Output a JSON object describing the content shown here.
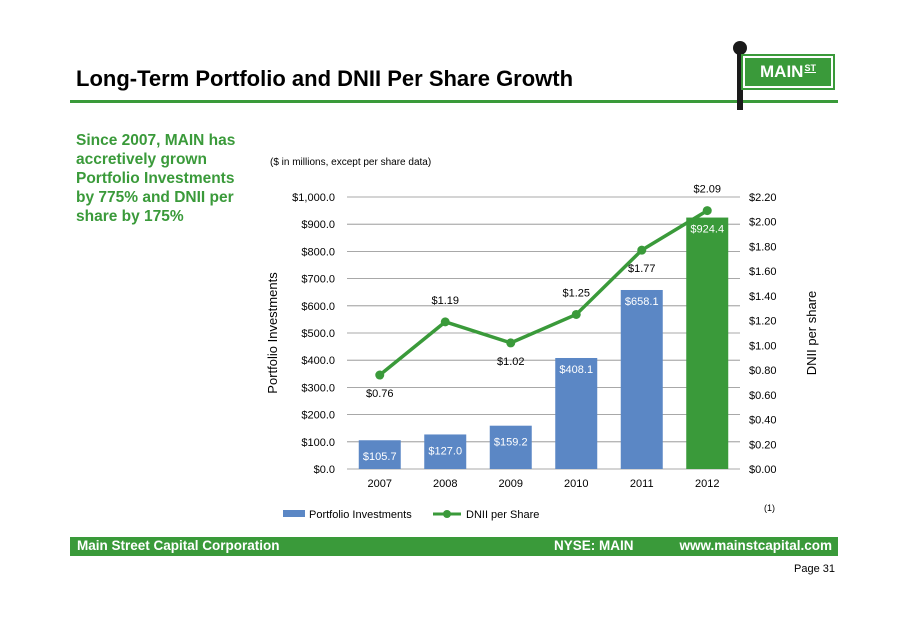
{
  "header": {
    "title": "Long-Term Portfolio and DNII Per Share Growth"
  },
  "logo": {
    "text": "MAIN",
    "superscript": "ST"
  },
  "sidebar": {
    "text": "Since 2007, MAIN has accretively grown Portfolio Investments by 775% and DNII per share by 175%"
  },
  "chart_data": {
    "type": "bar",
    "subtitle": "($ in millions, except per share data)",
    "categories": [
      "2007",
      "2008",
      "2009",
      "2010",
      "2011",
      "2012"
    ],
    "series": [
      {
        "name": "Portfolio Investments",
        "kind": "bar",
        "axis": "left",
        "values": [
          105.7,
          127.0,
          159.2,
          408.1,
          658.1,
          924.4
        ],
        "labels": [
          "$105.7",
          "$127.0",
          "$159.2",
          "$408.1",
          "$658.1",
          "$924.4"
        ],
        "colors": [
          "#5b87c5",
          "#5b87c5",
          "#5b87c5",
          "#5b87c5",
          "#5b87c5",
          "#3a9a3a"
        ]
      },
      {
        "name": "DNII per Share",
        "kind": "line",
        "axis": "right",
        "values": [
          0.76,
          1.19,
          1.02,
          1.25,
          1.77,
          2.09
        ],
        "labels": [
          "$0.76",
          "$1.19",
          "$1.02",
          "$1.25",
          "$1.77",
          "$2.09"
        ],
        "color": "#3a9a3a"
      }
    ],
    "ylabel": "Portfolio Investments",
    "y2label": "DNII per share",
    "ylim": [
      0,
      1000
    ],
    "y2lim": [
      0,
      2.2
    ],
    "yticks": [
      "$0.0",
      "$100.0",
      "$200.0",
      "$300.0",
      "$400.0",
      "$500.0",
      "$600.0",
      "$700.0",
      "$800.0",
      "$900.0",
      "$1,000.0"
    ],
    "y2ticks": [
      "$0.00",
      "$0.20",
      "$0.40",
      "$0.60",
      "$0.80",
      "$1.00",
      "$1.20",
      "$1.40",
      "$1.60",
      "$1.80",
      "$2.00",
      "$2.20"
    ],
    "grid": true,
    "legend_position": "bottom",
    "footnote": "(1)"
  },
  "footer": {
    "company": "Main Street Capital Corporation",
    "ticker": "NYSE: MAIN",
    "website": "www.mainstcapital.com"
  },
  "page": {
    "label": "Page 31"
  },
  "colors": {
    "brand_green": "#3a9a3a",
    "bar_blue": "#5b87c5",
    "grid": "#8c8c8c"
  }
}
